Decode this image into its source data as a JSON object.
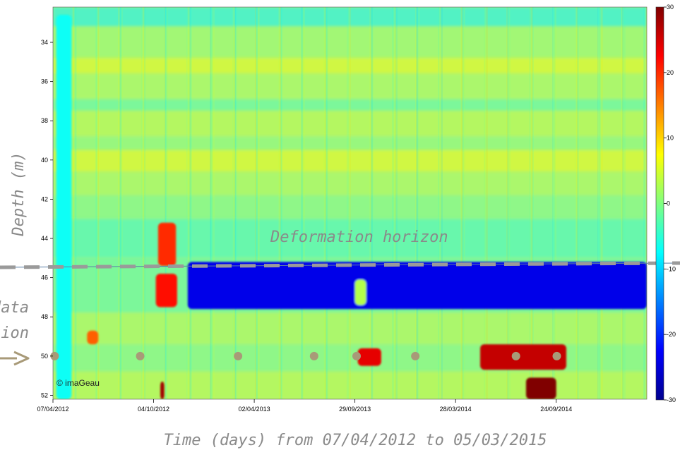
{
  "chart_data": {
    "type": "heatmap",
    "xlabel": "Time (days) from 07/04/2012 to 05/03/2015",
    "ylabel": "Depth (m)",
    "x_ticks": [
      "07/04/2012",
      "04/10/2012",
      "02/04/2013",
      "29/09/2013",
      "28/03/2014",
      "24/09/2014"
    ],
    "x_range": [
      "07/04/2012",
      "05/03/2015"
    ],
    "y_ticks": [
      34,
      36,
      38,
      40,
      42,
      44,
      46,
      48,
      50,
      52
    ],
    "y_range": [
      32.2,
      52.2
    ],
    "y_reversed": true,
    "colorbar": {
      "ticks": [
        30,
        20,
        10,
        0,
        -10,
        -20,
        -30
      ],
      "range": [
        -30,
        30
      ],
      "colormap": "jet"
    },
    "annotations": {
      "deformation_horizon": {
        "label": "Deformation horizon",
        "depth_m": 45.4,
        "color": "#9a9a9a"
      },
      "left_label_lines": [
        "data",
        "tion"
      ],
      "watermark": "© imaGeau",
      "sensor_depth_m": 50,
      "sensor_marker_dates": [
        "10/04/2012",
        "10/09/2012",
        "04/03/2013",
        "18/07/2013",
        "02/10/2013",
        "15/01/2014",
        "14/07/2014",
        "25/09/2014"
      ],
      "marker_color": "#a89a78"
    },
    "features": [
      {
        "date_start": "13/04/2012",
        "date_end": "10/05/2012",
        "depth_top": 32.6,
        "depth_bottom": 52.2,
        "value": -7
      },
      {
        "date_start": "07/06/2012",
        "date_end": "27/06/2012",
        "depth_top": 48.7,
        "depth_bottom": 49.4,
        "value": 17
      },
      {
        "date_start": "12/10/2012",
        "date_end": "13/11/2012",
        "depth_top": 43.2,
        "depth_bottom": 45.4,
        "value": 20
      },
      {
        "date_start": "08/10/2012",
        "date_end": "15/11/2012",
        "depth_top": 45.8,
        "depth_bottom": 47.5,
        "value": 22
      },
      {
        "date_start": "16/10/2012",
        "date_end": "23/10/2012",
        "depth_top": 51.3,
        "depth_bottom": 52.2,
        "value": 28
      },
      {
        "date_start": "04/12/2012",
        "date_end": "05/03/2015",
        "depth_top": 45.2,
        "depth_bottom": 47.6,
        "value": -24
      },
      {
        "date_start": "29/09/2013",
        "date_end": "19/10/2013",
        "depth_top": 46.1,
        "depth_bottom": 47.4,
        "value": 3
      },
      {
        "date_start": "04/10/2013",
        "date_end": "15/11/2013",
        "depth_top": 49.6,
        "depth_bottom": 50.5,
        "value": 24
      },
      {
        "date_start": "11/05/2014",
        "date_end": "12/10/2014",
        "depth_top": 49.4,
        "depth_bottom": 50.7,
        "value": 26
      },
      {
        "date_start": "01/08/2014",
        "date_end": "24/09/2014",
        "depth_top": 51.1,
        "depth_bottom": 52.2,
        "value": 30
      }
    ]
  }
}
